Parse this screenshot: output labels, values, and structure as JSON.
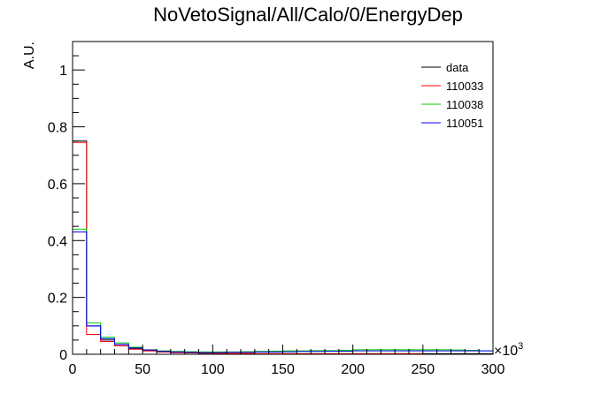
{
  "chart_data": {
    "type": "line",
    "title": "NoVetoSignal/All/Calo/0/EnergyDep",
    "xlabel": "",
    "ylabel": "A.U.",
    "x_multiplier_label": "×10",
    "x_multiplier_exponent": "3",
    "xlim": [
      0,
      300
    ],
    "ylim": [
      0,
      1.1
    ],
    "x_ticks": [
      0,
      50,
      100,
      150,
      200,
      250,
      300
    ],
    "x_tick_labels": [
      "0",
      "50",
      "100",
      "150",
      "200",
      "250",
      "300"
    ],
    "y_ticks": [
      0,
      0.2,
      0.4,
      0.6,
      0.8,
      1
    ],
    "y_tick_labels": [
      "0",
      "0.2",
      "0.4",
      "0.6",
      "0.8",
      "1"
    ],
    "bin_edges": [
      0,
      10,
      20,
      30,
      40,
      50,
      60,
      70,
      80,
      90,
      100,
      110,
      120,
      130,
      140,
      150,
      160,
      170,
      180,
      190,
      200,
      210,
      220,
      230,
      240,
      250,
      260,
      270,
      280,
      290,
      300
    ],
    "grid": false,
    "legend_position": "top-right",
    "series": [
      {
        "name": "data",
        "color": "#000000",
        "values": [
          0.75,
          0.1,
          0.05,
          0.03,
          0.02,
          0.012,
          0.008,
          0.006,
          0.005,
          0.004,
          0.003,
          0.003,
          0.003,
          0.002,
          0.002,
          0.002,
          0.002,
          0.002,
          0.002,
          0.002,
          0.002,
          0.002,
          0.002,
          0.002,
          0.002,
          0.002,
          0.002,
          0.002,
          0.002,
          0.002
        ]
      },
      {
        "name": "110033",
        "color": "#ff0000",
        "values": [
          0.745,
          0.07,
          0.045,
          0.03,
          0.018,
          0.012,
          0.008,
          0.006,
          0.005,
          0.004,
          0.003,
          0.003,
          0.003,
          0.002,
          0.002,
          0.002,
          0.002,
          0.002,
          0.002,
          0.002,
          0.002,
          0.002,
          0.002,
          0.002,
          0.002,
          0.0,
          0.0,
          0.0,
          0.0,
          0.0
        ]
      },
      {
        "name": "110038",
        "color": "#00cc00",
        "values": [
          0.44,
          0.11,
          0.06,
          0.04,
          0.025,
          0.016,
          0.012,
          0.01,
          0.009,
          0.008,
          0.008,
          0.008,
          0.009,
          0.01,
          0.011,
          0.012,
          0.012,
          0.013,
          0.013,
          0.014,
          0.016,
          0.016,
          0.016,
          0.016,
          0.016,
          0.016,
          0.016,
          0.015,
          0.014,
          0.012
        ]
      },
      {
        "name": "110051",
        "color": "#0000ff",
        "values": [
          0.43,
          0.1,
          0.055,
          0.035,
          0.022,
          0.015,
          0.01,
          0.008,
          0.007,
          0.006,
          0.006,
          0.007,
          0.007,
          0.008,
          0.008,
          0.009,
          0.01,
          0.01,
          0.011,
          0.011,
          0.012,
          0.012,
          0.012,
          0.012,
          0.012,
          0.012,
          0.012,
          0.012,
          0.012,
          0.012
        ]
      }
    ]
  }
}
